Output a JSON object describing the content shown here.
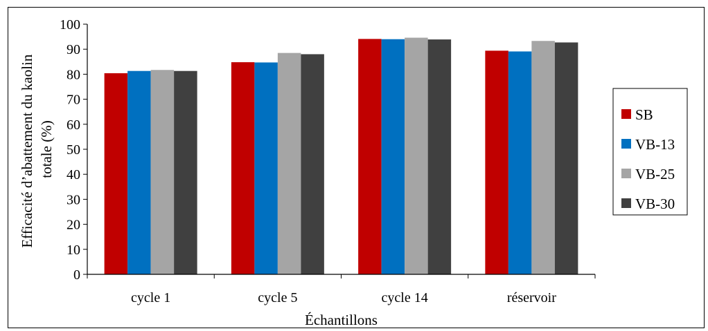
{
  "chart_data": {
    "type": "bar",
    "title": "",
    "xlabel": "Échantillons",
    "ylabel_lines": [
      "Efficacité d’abattement du kaolin",
      "totale (%)"
    ],
    "categories": [
      "cycle 1",
      "cycle 5",
      "cycle 14",
      "réservoir"
    ],
    "series": [
      {
        "name": "SB",
        "color": "#c00000",
        "values": [
          80.4,
          84.8,
          94.1,
          89.4
        ]
      },
      {
        "name": "VB-13",
        "color": "#0070c0",
        "values": [
          81.3,
          84.7,
          94.0,
          89.1
        ]
      },
      {
        "name": "VB-25",
        "color": "#a5a5a5",
        "values": [
          81.7,
          88.5,
          94.6,
          93.3
        ]
      },
      {
        "name": "VB-30",
        "color": "#404040",
        "values": [
          81.3,
          88.0,
          93.9,
          92.7
        ]
      }
    ],
    "ylim": [
      0,
      100
    ],
    "yticks": [
      0,
      10,
      20,
      30,
      40,
      50,
      60,
      70,
      80,
      90,
      100
    ],
    "grid": false,
    "legend_position": "right"
  }
}
